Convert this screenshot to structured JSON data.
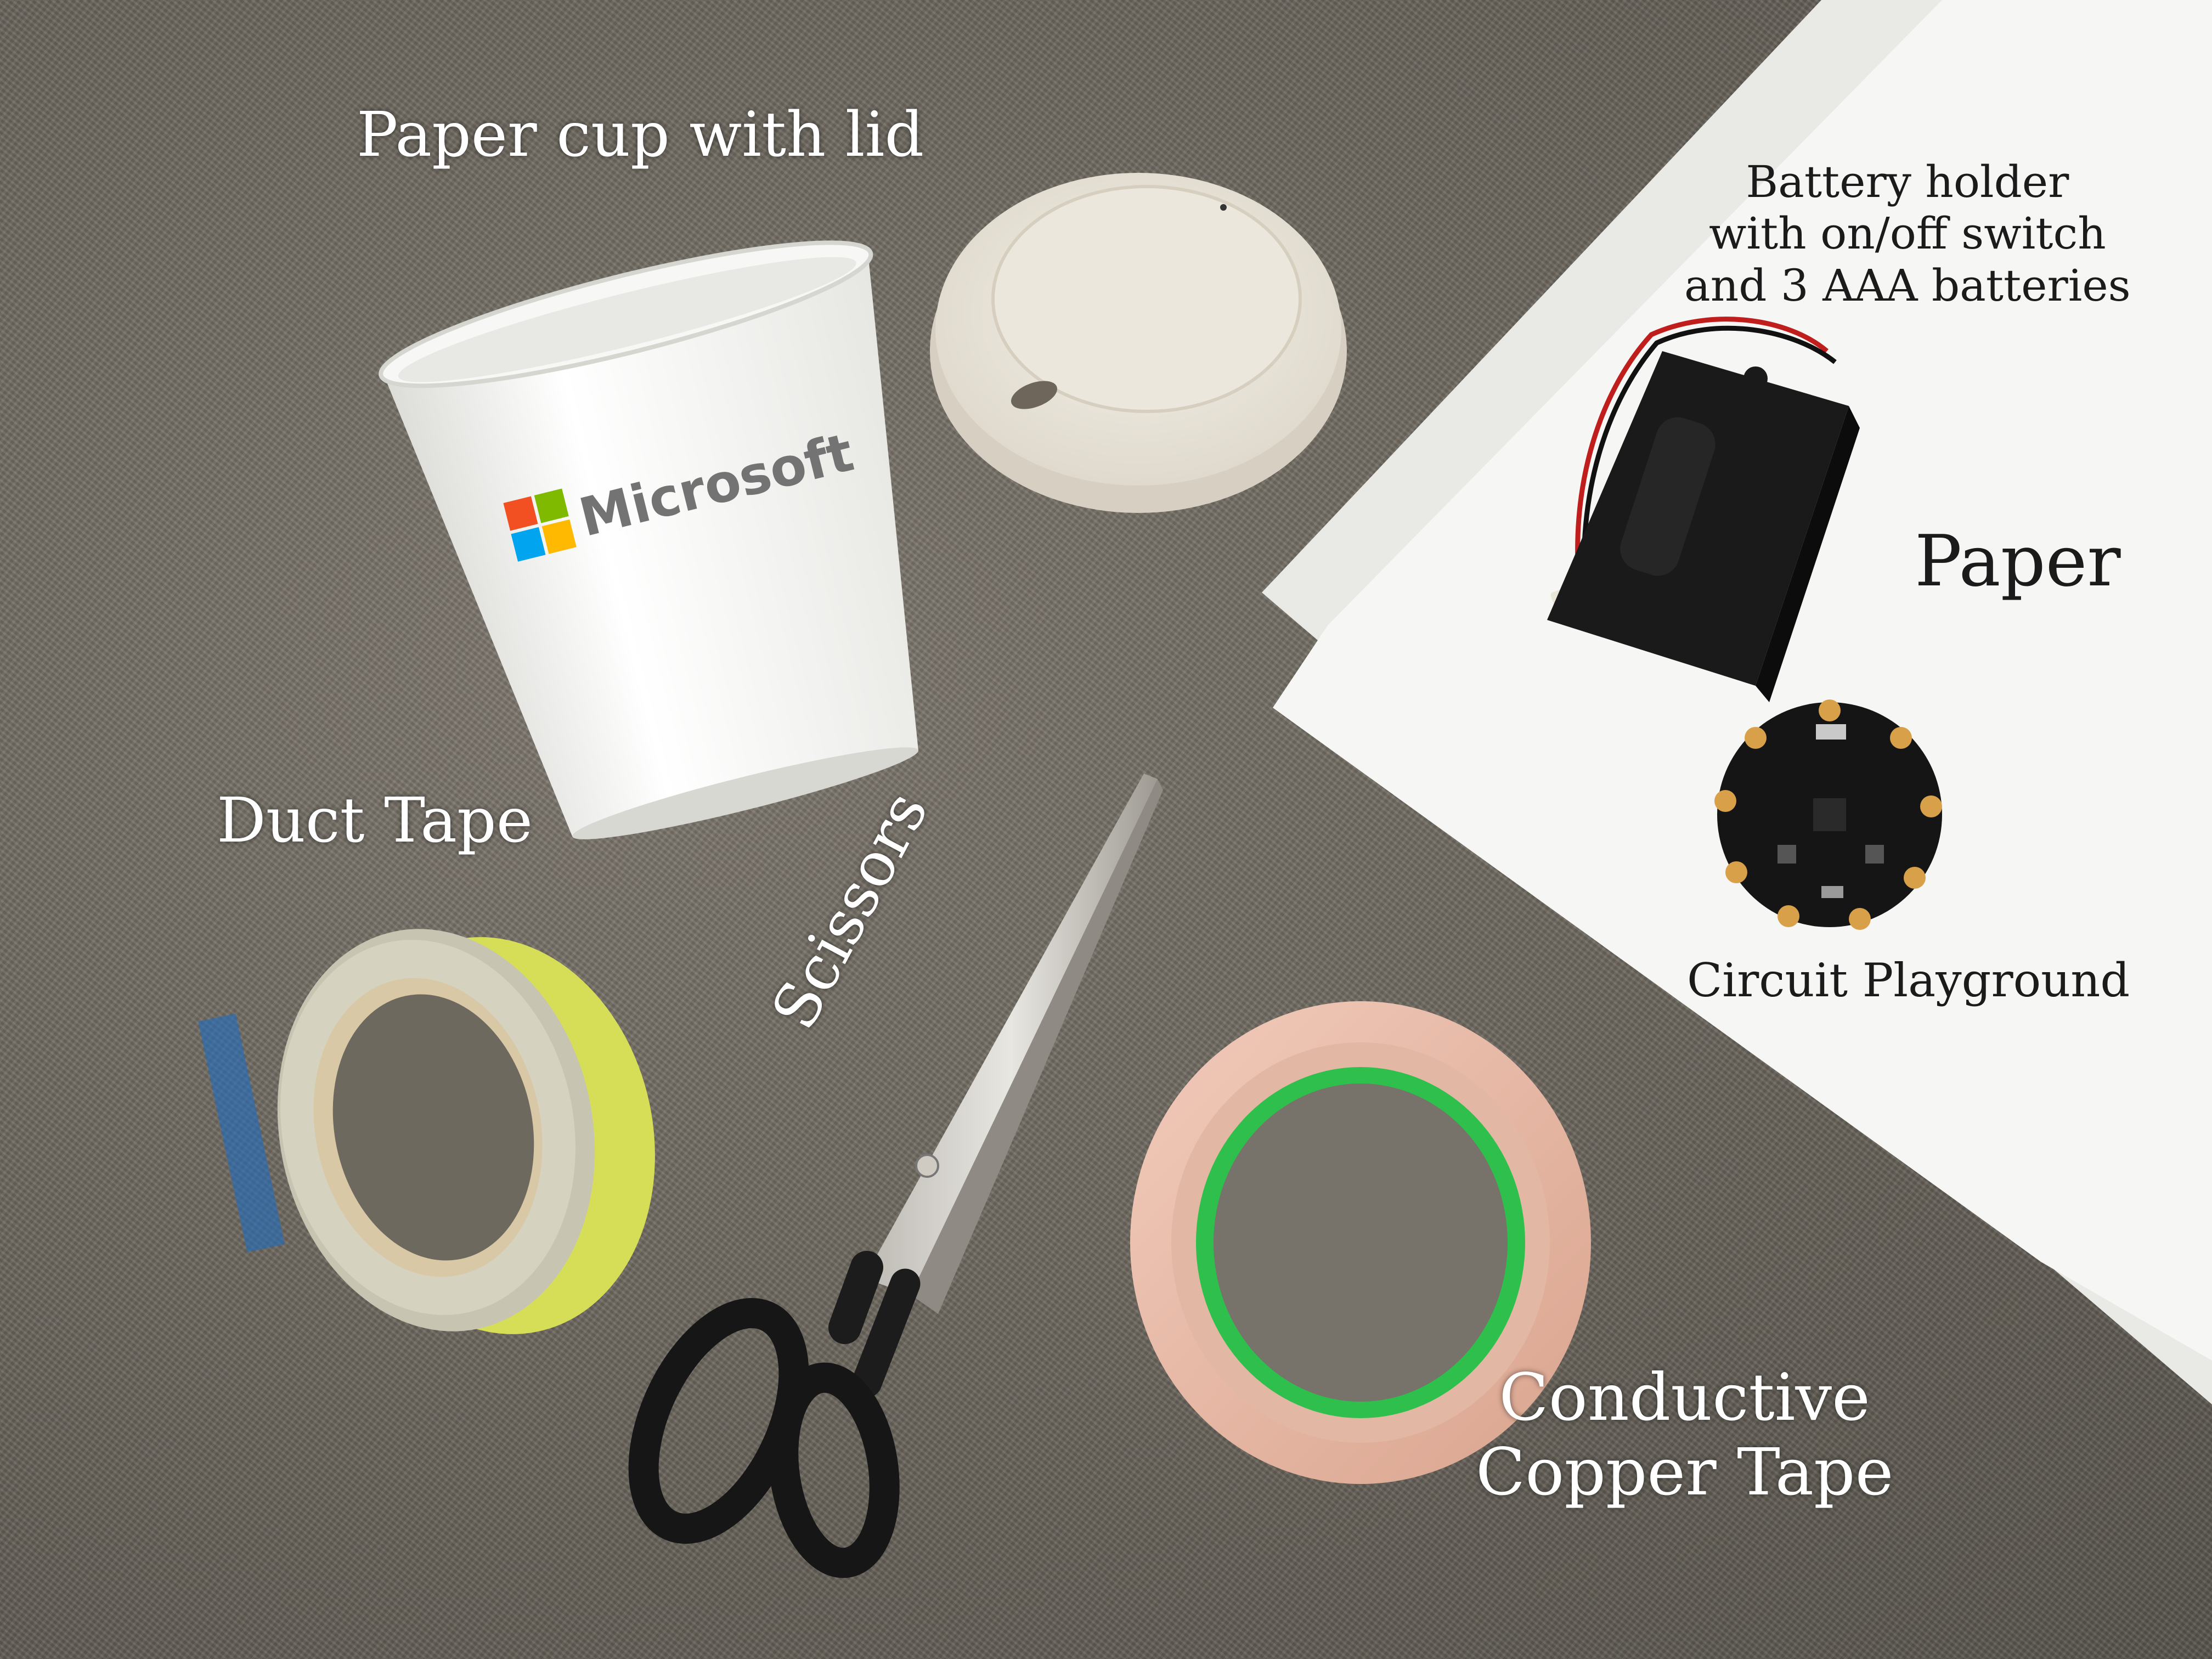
{
  "labels": {
    "cup": "Paper cup with lid",
    "battery_line1": "Battery holder",
    "battery_line2": "with on/off switch",
    "battery_line3": "and 3 AAA batteries",
    "paper": "Paper",
    "circuit": "Circuit Playground",
    "duct": "Duct Tape",
    "scissors": "Scissors",
    "copper_line1": "Conductive",
    "copper_line2": "Copper Tape"
  },
  "cup_print": {
    "brand": "Microsoft",
    "logo_colors": [
      "#f25022",
      "#7fba00",
      "#00a4ef",
      "#ffb900"
    ]
  },
  "colors": {
    "carpet": "#6b665d",
    "paper": "#f4f4f2",
    "copper": "#e9b9a4",
    "copper_liner": "#2fbf4c",
    "duct_tape_yellow": "#d8de52"
  }
}
